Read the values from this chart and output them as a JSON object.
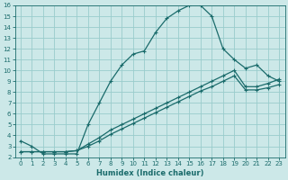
{
  "xlabel": "Humidex (Indice chaleur)",
  "ylabel": "",
  "bg_color": "#cce8e8",
  "grid_color": "#99cccc",
  "line_color": "#1a6b6b",
  "xlim": [
    -0.5,
    23.5
  ],
  "ylim": [
    2,
    16
  ],
  "xticks": [
    0,
    1,
    2,
    3,
    4,
    5,
    6,
    7,
    8,
    9,
    10,
    11,
    12,
    13,
    14,
    15,
    16,
    17,
    18,
    19,
    20,
    21,
    22,
    23
  ],
  "yticks": [
    2,
    3,
    4,
    5,
    6,
    7,
    8,
    9,
    10,
    11,
    12,
    13,
    14,
    15,
    16
  ],
  "curve1_x": [
    0,
    1,
    2,
    3,
    4,
    5,
    6,
    7,
    8,
    9,
    10,
    11,
    12,
    13,
    14,
    15,
    16,
    17,
    18,
    19,
    20,
    21,
    22,
    23
  ],
  "curve1_y": [
    3.5,
    3.0,
    2.3,
    2.3,
    2.3,
    2.3,
    5.0,
    7.0,
    9.0,
    10.5,
    11.5,
    11.8,
    13.5,
    14.8,
    15.5,
    16.0,
    16.0,
    15.0,
    12.0,
    11.0,
    10.2,
    10.5,
    9.5,
    9.0
  ],
  "curve2_x": [
    0,
    1,
    2,
    3,
    4,
    5,
    6,
    7,
    8,
    9,
    10,
    11,
    12,
    13,
    14,
    15,
    16,
    17,
    18,
    19,
    20,
    21,
    22,
    23
  ],
  "curve2_y": [
    2.5,
    2.5,
    2.5,
    2.5,
    2.5,
    2.6,
    3.2,
    3.8,
    4.5,
    5.0,
    5.5,
    6.0,
    6.5,
    7.0,
    7.5,
    8.0,
    8.5,
    9.0,
    9.5,
    10.0,
    8.5,
    8.5,
    8.8,
    9.2
  ],
  "curve3_x": [
    0,
    1,
    2,
    3,
    4,
    5,
    6,
    7,
    8,
    9,
    10,
    11,
    12,
    13,
    14,
    15,
    16,
    17,
    18,
    19,
    20,
    21,
    22,
    23
  ],
  "curve3_y": [
    2.5,
    2.5,
    2.5,
    2.5,
    2.5,
    2.6,
    3.0,
    3.5,
    4.1,
    4.6,
    5.1,
    5.6,
    6.1,
    6.6,
    7.1,
    7.6,
    8.1,
    8.5,
    9.0,
    9.5,
    8.2,
    8.2,
    8.4,
    8.7
  ]
}
